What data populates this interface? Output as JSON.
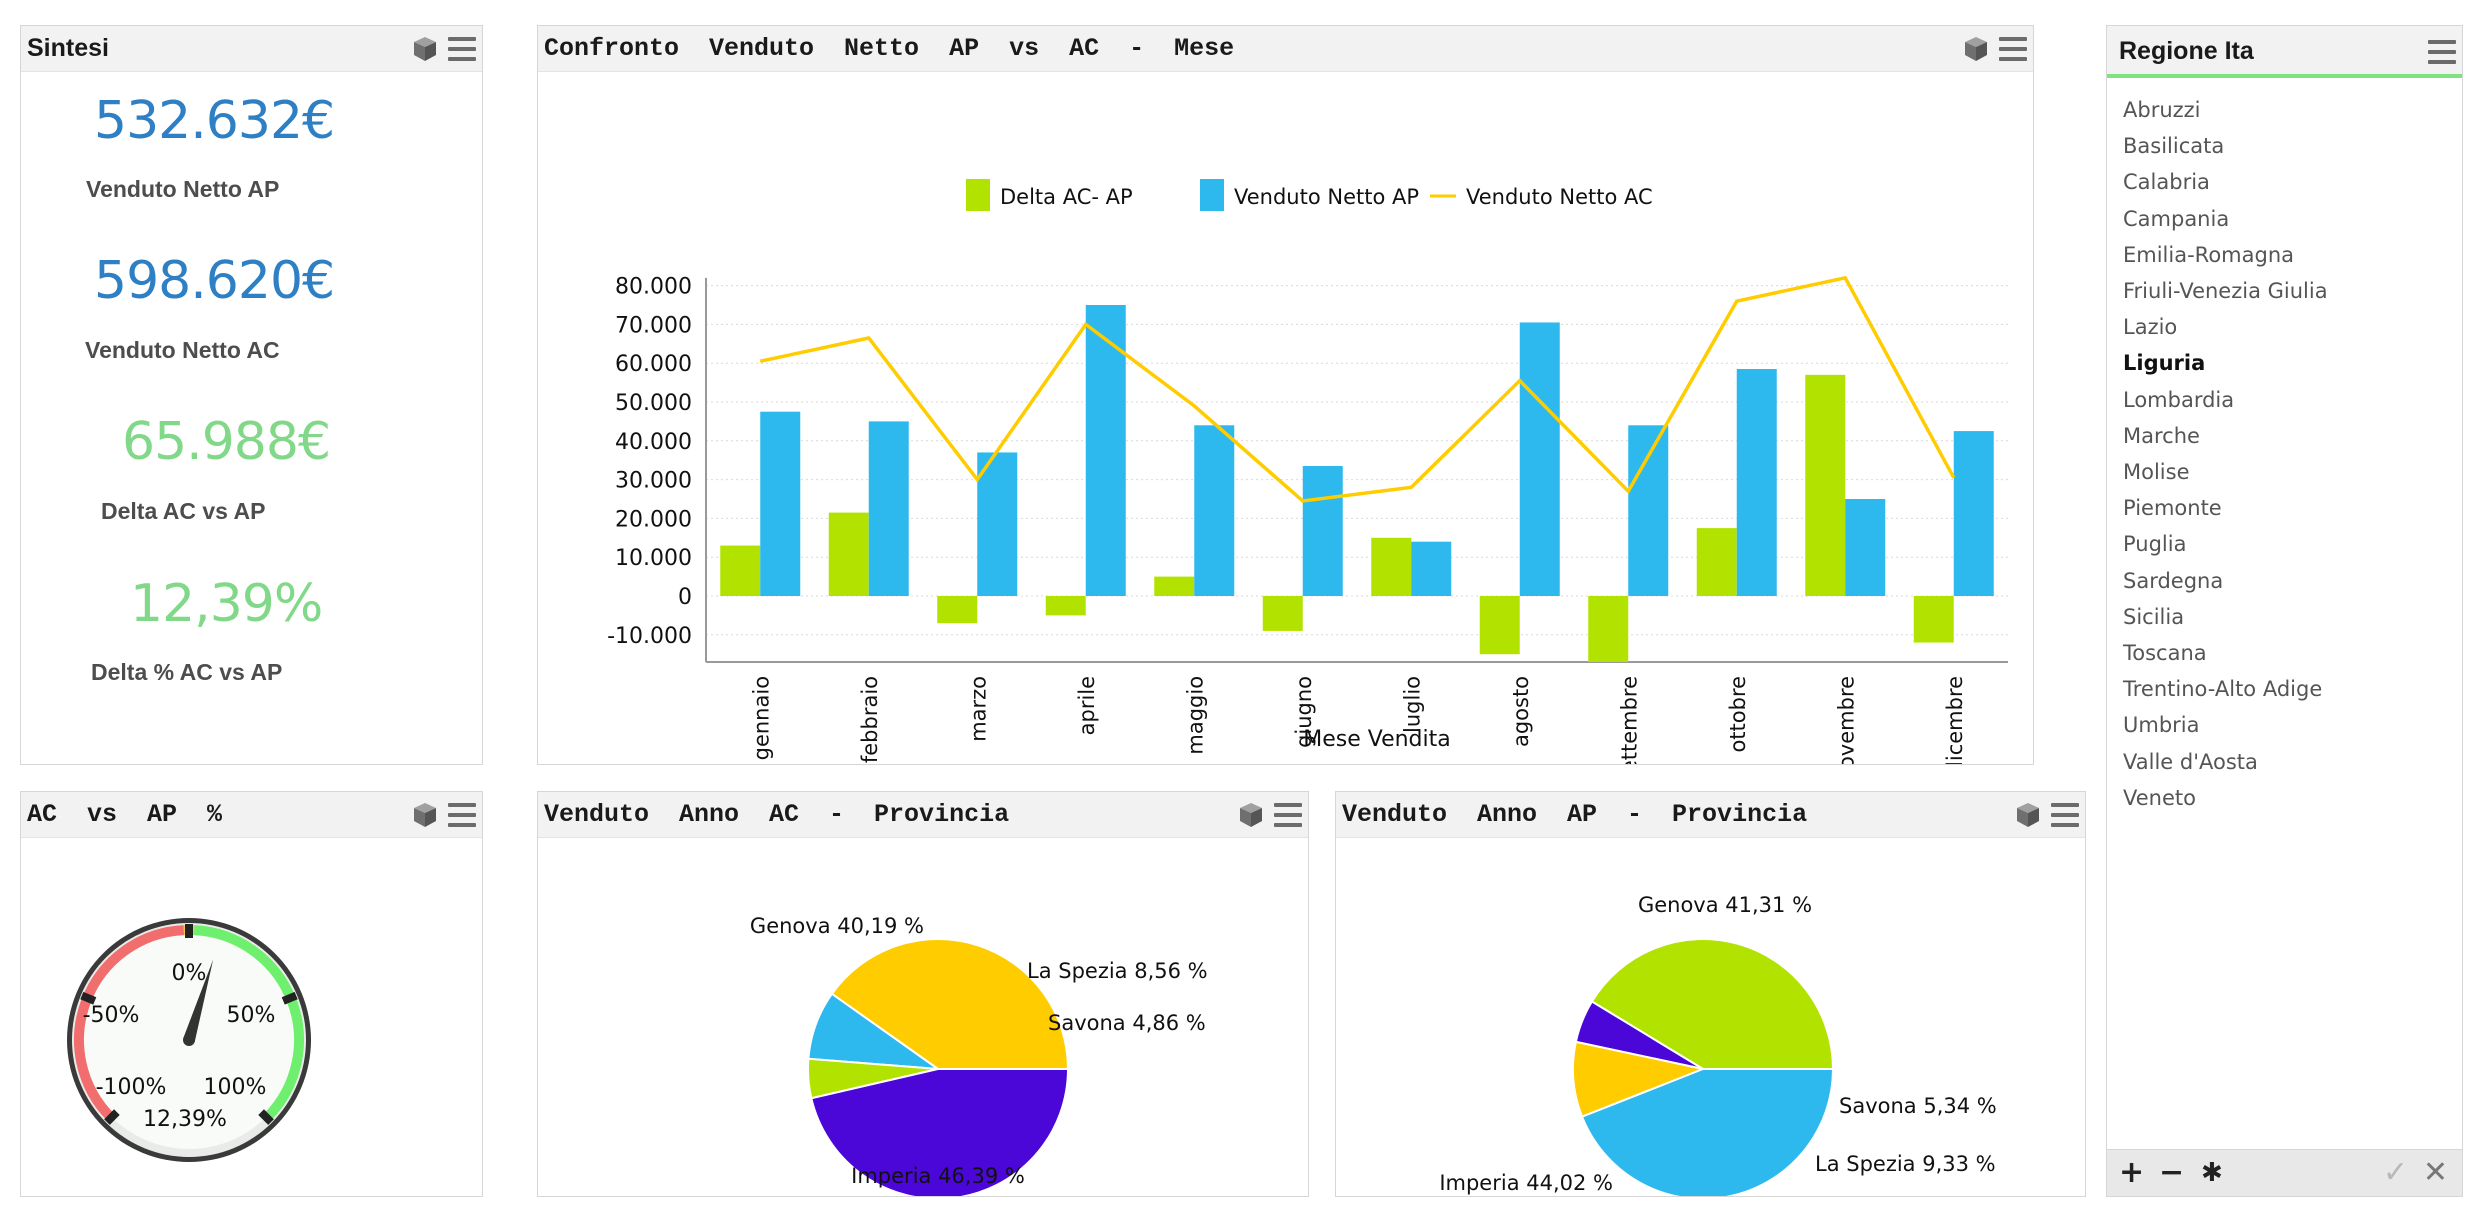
{
  "sintesi": {
    "title": "Sintesi",
    "kpis": [
      {
        "value": "532.632€",
        "label": "Venduto Netto AP",
        "color": "#2f7fc4"
      },
      {
        "value": "598.620€",
        "label": "Venduto Netto AC",
        "color": "#2f7fc4"
      },
      {
        "value": "65.988€",
        "label": "Delta AC vs AP",
        "color": "#82d889"
      },
      {
        "value": "12,39%",
        "label": "Delta % AC vs AP",
        "color": "#82d889"
      }
    ]
  },
  "monthly": {
    "title": "Confronto  Venduto  Netto  AP  vs  AC  -  Mese"
  },
  "gauge": {
    "title": "AC  vs  AP  %",
    "value_percent": 12.39,
    "value_label": "12,39%",
    "labels": {
      "zero": "0%",
      "neg50": "-50%",
      "pos50": "50%",
      "neg100": "-100%",
      "pos100": "100%"
    },
    "colors": {
      "negative": "#f26d6d",
      "positive": "#6ef06e",
      "pivot": "#f2c44a"
    }
  },
  "pie_ac": {
    "title": "Venduto  Anno  AC  -  Provincia"
  },
  "pie_ap": {
    "title": "Venduto  Anno  AP  -  Provincia"
  },
  "regions": {
    "title": "Regione Ita",
    "items": [
      "Abruzzi",
      "Basilicata",
      "Calabria",
      "Campania",
      "Emilia-Romagna",
      "Friuli-Venezia Giulia",
      "Lazio",
      "Liguria",
      "Lombardia",
      "Marche",
      "Molise",
      "Piemonte",
      "Puglia",
      "Sardegna",
      "Sicilia",
      "Toscana",
      "Trentino-Alto Adige",
      "Umbria",
      "Valle d'Aosta",
      "Veneto"
    ],
    "selected": "Liguria",
    "footer": {
      "add": "+",
      "remove": "−",
      "star": "✱",
      "confirm": "✓",
      "cancel": "✕"
    }
  },
  "colors": {
    "green": "#b2e300",
    "blue": "#2db8ee",
    "line": "#ffcc00",
    "purple": "#4b06d8"
  },
  "chart_data": [
    {
      "type": "bar",
      "title": "Confronto  Venduto  Netto  AP  vs  AC  -  Mese",
      "xlabel": "Mese Vendita",
      "ylabel": "",
      "ylim": [
        -17000,
        82000
      ],
      "yticks": [
        -10000,
        0,
        10000,
        20000,
        30000,
        40000,
        50000,
        60000,
        70000,
        80000
      ],
      "ytick_labels": [
        "-10.000",
        "0",
        "10.000",
        "20.000",
        "30.000",
        "40.000",
        "50.000",
        "60.000",
        "70.000",
        "80.000"
      ],
      "categories": [
        "gennaio",
        "febbraio",
        "marzo",
        "aprile",
        "maggio",
        "giugno",
        "luglio",
        "agosto",
        "settembre",
        "ottobre",
        "novembre",
        "dicembre"
      ],
      "series": [
        {
          "name": "Delta AC- AP",
          "kind": "bar",
          "values": [
            13000,
            21500,
            -7000,
            -5000,
            5000,
            -9000,
            15000,
            -15000,
            -17000,
            17500,
            57000,
            -12000
          ]
        },
        {
          "name": "Venduto Netto AP",
          "kind": "bar",
          "values": [
            47500,
            45000,
            37000,
            75000,
            44000,
            33500,
            14000,
            70500,
            44000,
            58500,
            25000,
            42500
          ]
        },
        {
          "name": "Venduto Netto AC",
          "kind": "line",
          "values": [
            60500,
            66500,
            30000,
            70000,
            49000,
            24500,
            28000,
            55500,
            27000,
            76000,
            82000,
            30500
          ]
        }
      ],
      "legend": "top"
    },
    {
      "type": "pie",
      "title": "Venduto  Anno  AC  -  Provincia",
      "slices": [
        {
          "label": "Genova",
          "value": 40.19,
          "display": "Genova 40,19 %",
          "color": "#ffcc00"
        },
        {
          "label": "La Spezia",
          "value": 8.56,
          "display": "La Spezia 8,56 %",
          "color": "#2db8ee"
        },
        {
          "label": "Savona",
          "value": 4.86,
          "display": "Savona 4,86 %",
          "color": "#b2e300"
        },
        {
          "label": "Imperia",
          "value": 46.39,
          "display": "Imperia 46,39 %",
          "color": "#4b06d8"
        }
      ]
    },
    {
      "type": "pie",
      "title": "Venduto  Anno  AP  -  Provincia",
      "slices": [
        {
          "label": "Genova",
          "value": 41.31,
          "display": "Genova 41,31 %",
          "color": "#b2e300"
        },
        {
          "label": "Savona",
          "value": 5.34,
          "display": "Savona 5,34 %",
          "color": "#4b06d8"
        },
        {
          "label": "La Spezia",
          "value": 9.33,
          "display": "La Spezia 9,33 %",
          "color": "#ffcc00"
        },
        {
          "label": "Imperia",
          "value": 44.02,
          "display": "Imperia 44,02 %",
          "color": "#2db8ee"
        }
      ]
    }
  ]
}
